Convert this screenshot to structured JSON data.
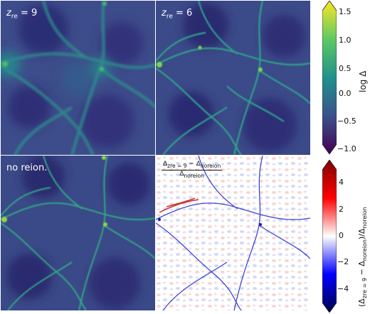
{
  "panels": {
    "top_left": {
      "label": "z",
      "label_sub": "re",
      "label_rest": " = 9"
    },
    "top_right": {
      "label": "z",
      "label_sub": "re",
      "label_rest": " = 6"
    },
    "bottom_left": {
      "label": "no reion."
    },
    "bottom_right": {
      "frac_num": "Δ",
      "frac_num_sub": "zre = 9",
      "frac_num_mid": " − Δ",
      "frac_num_sub2": "noreion",
      "frac_den": "Δ",
      "frac_den_sub": "noreion"
    }
  },
  "colorbar_top": {
    "title": "log Δ",
    "ticks": [
      "1.5",
      "1.0",
      "0.5",
      "0.0",
      "−0.5",
      "−1.0"
    ],
    "colormap": "viridis",
    "colors": [
      "#440154",
      "#3b528b",
      "#21918c",
      "#5ec962",
      "#fde725"
    ]
  },
  "colorbar_bottom": {
    "title_a": "(Δ",
    "title_sub_a": "zre = 9",
    "title_b": " − Δ",
    "title_sub_b": "noreion",
    "title_c": ")/Δ",
    "title_sub_c": "noreion",
    "ticks": [
      "4",
      "2",
      "0",
      "−2",
      "−4"
    ],
    "colormap": "seismic",
    "colors": [
      "#00004c",
      "#0000ff",
      "#ffffff",
      "#ff0000",
      "#7f0000"
    ]
  }
}
